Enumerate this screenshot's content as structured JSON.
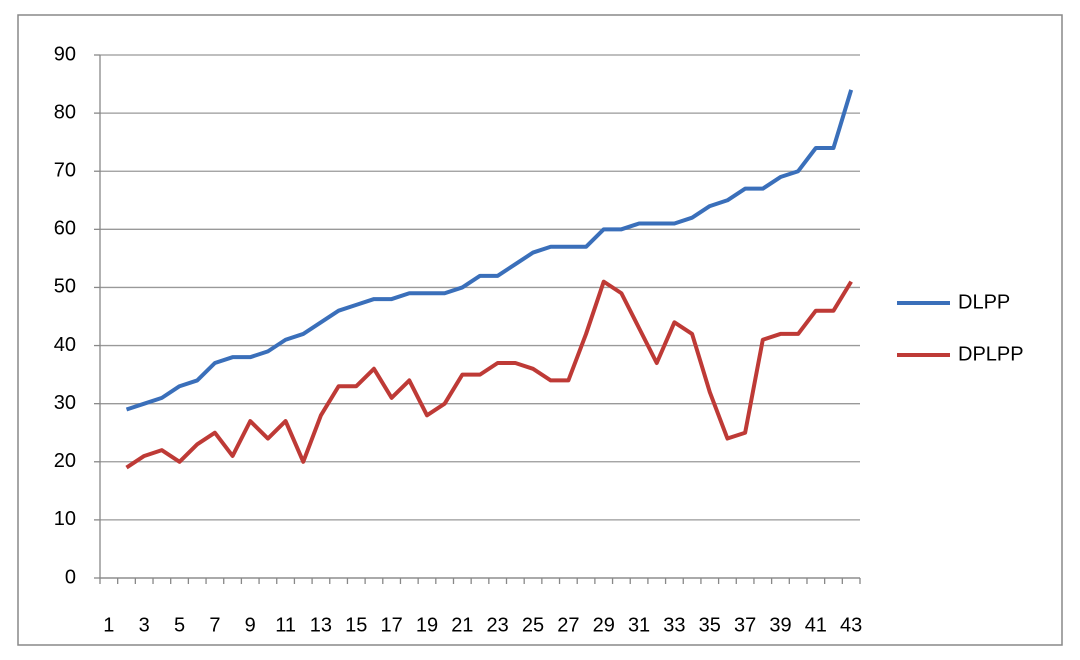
{
  "chart_data": {
    "type": "line",
    "categories": [
      1,
      null,
      3,
      null,
      5,
      null,
      7,
      null,
      9,
      null,
      11,
      null,
      13,
      null,
      15,
      null,
      17,
      null,
      19,
      null,
      21,
      null,
      23,
      null,
      25,
      null,
      27,
      null,
      29,
      null,
      31,
      null,
      33,
      null,
      35,
      null,
      37,
      null,
      39,
      null,
      41,
      null,
      43
    ],
    "series": [
      {
        "name": "DLPP",
        "color": "#3a6fba",
        "values": [
          null,
          29,
          30,
          31,
          33,
          34,
          37,
          38,
          38,
          39,
          41,
          42,
          44,
          46,
          47,
          48,
          48,
          49,
          49,
          49,
          50,
          52,
          52,
          54,
          56,
          57,
          57,
          57,
          60,
          60,
          61,
          61,
          61,
          62,
          64,
          65,
          67,
          67,
          69,
          70,
          74,
          74,
          84
        ]
      },
      {
        "name": "DPLPP",
        "color": "#be3a36",
        "values": [
          null,
          19,
          21,
          22,
          20,
          23,
          25,
          21,
          27,
          24,
          27,
          20,
          28,
          33,
          33,
          36,
          31,
          34,
          28,
          30,
          35,
          35,
          37,
          37,
          36,
          34,
          34,
          42,
          51,
          49,
          43,
          37,
          44,
          42,
          32,
          24,
          25,
          41,
          42,
          42,
          46,
          46,
          51
        ]
      }
    ],
    "ylim": [
      0,
      90
    ],
    "yticks": [
      0,
      10,
      20,
      30,
      40,
      50,
      60,
      70,
      80,
      90
    ],
    "grid": true,
    "legend": "right"
  }
}
